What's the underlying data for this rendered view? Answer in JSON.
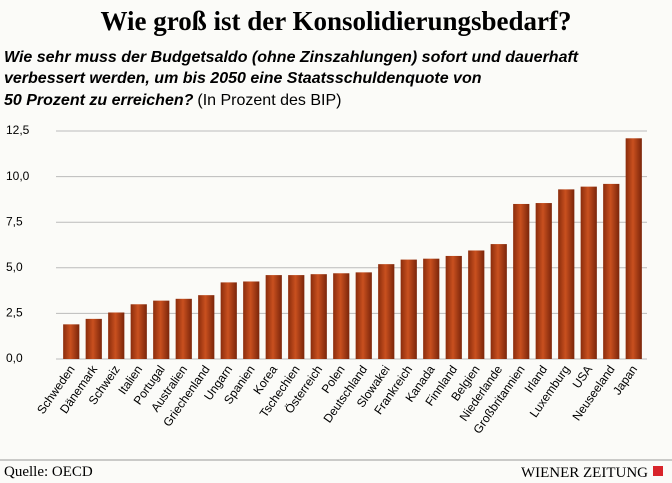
{
  "chart_data": {
    "type": "bar",
    "title": "Wie groß ist der Konsolidierungsbedarf?",
    "subtitle": [
      "Wie sehr muss der Budgetsaldo (ohne Zinszahlungen) sofort und dauerhaft",
      "verbessert werden, um bis 2050 eine Staatsschuldenquote von",
      "50 Prozent zu erreichen?"
    ],
    "unit_note": "(In Prozent des BIP)",
    "categories": [
      "Schweden",
      "Dänemark",
      "Schweiz",
      "Italien",
      "Portugal",
      "Australien",
      "Griechenland",
      "Ungarn",
      "Spanien",
      "Korea",
      "Tschechien",
      "Österreich",
      "Polen",
      "Deutschland",
      "Slowakei",
      "Frankreich",
      "Kanada",
      "Finnland",
      "Belgien",
      "Niederlande",
      "Großbritannien",
      "Irland",
      "Luxemburg",
      "USA",
      "Neuseeland",
      "Japan"
    ],
    "values": [
      1.9,
      2.2,
      2.55,
      3.0,
      3.2,
      3.3,
      3.5,
      4.2,
      4.25,
      4.6,
      4.6,
      4.65,
      4.7,
      4.75,
      5.2,
      5.45,
      5.5,
      5.65,
      5.95,
      6.3,
      8.5,
      8.55,
      9.3,
      9.45,
      9.6,
      12.1
    ],
    "color": "#c9501f",
    "ylim": [
      0,
      12.5
    ],
    "yticks": [
      {
        "value": 0,
        "label": "0,0"
      },
      {
        "value": 2.5,
        "label": "2,5"
      },
      {
        "value": 5,
        "label": "5,0"
      },
      {
        "value": 7.5,
        "label": "7,5"
      },
      {
        "value": 10,
        "label": "10,0"
      },
      {
        "value": 12.5,
        "label": "12,5"
      }
    ],
    "grid": true,
    "source": "Quelle: OECD",
    "publisher": "Wiener Zeitung"
  }
}
